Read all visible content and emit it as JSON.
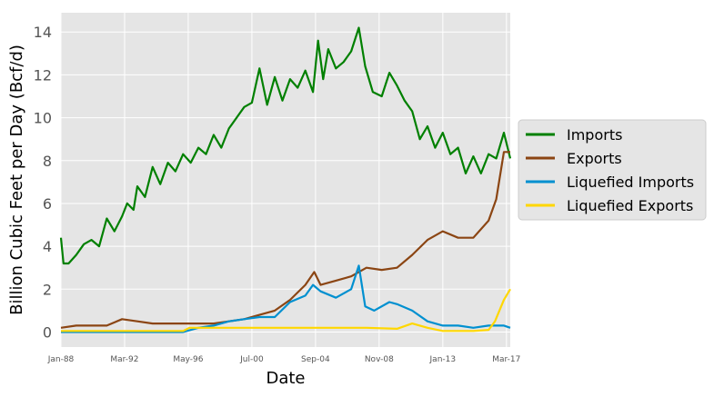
{
  "chart_data": {
    "type": "line",
    "xlabel": "Date",
    "ylabel": "Billion Cubic Feet per Day (Bcf/d)",
    "x_range": [
      "1988-01",
      "2017-06"
    ],
    "x_ticks": [
      "Jan-88",
      "Mar-92",
      "May-96",
      "Jul-00",
      "Sep-04",
      "Nov-08",
      "Jan-13",
      "Mar-17"
    ],
    "ylim": [
      -0.7,
      14.9
    ],
    "y_ticks": [
      0,
      2,
      4,
      6,
      8,
      10,
      12,
      14
    ],
    "grid": true,
    "legend_position": "right",
    "colors": {
      "Imports": "#008000",
      "Exports": "#8B4513",
      "Liquefied Imports": "#0090D0",
      "Liquefied Exports": "#FFD700"
    },
    "legend": [
      "Imports",
      "Exports",
      "Liquefied Imports",
      "Liquefied Exports"
    ],
    "series": [
      {
        "name": "Imports",
        "points": [
          [
            "1988-01",
            4.4
          ],
          [
            "1988-03",
            3.2
          ],
          [
            "1988-07",
            3.2
          ],
          [
            "1989-01",
            3.6
          ],
          [
            "1989-07",
            4.1
          ],
          [
            "1990-01",
            4.3
          ],
          [
            "1990-07",
            4.0
          ],
          [
            "1991-01",
            5.3
          ],
          [
            "1991-07",
            4.7
          ],
          [
            "1992-01",
            5.4
          ],
          [
            "1992-05",
            6.0
          ],
          [
            "1992-10",
            5.7
          ],
          [
            "1993-01",
            6.8
          ],
          [
            "1993-07",
            6.3
          ],
          [
            "1994-01",
            7.7
          ],
          [
            "1994-07",
            6.9
          ],
          [
            "1995-01",
            7.9
          ],
          [
            "1995-07",
            7.5
          ],
          [
            "1996-01",
            8.3
          ],
          [
            "1996-07",
            7.9
          ],
          [
            "1997-01",
            8.6
          ],
          [
            "1997-07",
            8.3
          ],
          [
            "1998-01",
            9.2
          ],
          [
            "1998-07",
            8.6
          ],
          [
            "1999-01",
            9.5
          ],
          [
            "1999-07",
            10.0
          ],
          [
            "2000-01",
            10.5
          ],
          [
            "2000-07",
            10.7
          ],
          [
            "2001-01",
            12.3
          ],
          [
            "2001-07",
            10.6
          ],
          [
            "2002-01",
            11.9
          ],
          [
            "2002-07",
            10.8
          ],
          [
            "2003-01",
            11.8
          ],
          [
            "2003-07",
            11.4
          ],
          [
            "2004-01",
            12.2
          ],
          [
            "2004-07",
            11.2
          ],
          [
            "2004-11",
            13.6
          ],
          [
            "2005-03",
            11.8
          ],
          [
            "2005-07",
            13.2
          ],
          [
            "2006-01",
            12.3
          ],
          [
            "2006-07",
            12.6
          ],
          [
            "2007-01",
            13.1
          ],
          [
            "2007-07",
            14.2
          ],
          [
            "2007-12",
            12.4
          ],
          [
            "2008-06",
            11.2
          ],
          [
            "2009-01",
            11.0
          ],
          [
            "2009-07",
            12.1
          ],
          [
            "2010-01",
            11.5
          ],
          [
            "2010-07",
            10.8
          ],
          [
            "2011-01",
            10.3
          ],
          [
            "2011-07",
            9.0
          ],
          [
            "2012-01",
            9.6
          ],
          [
            "2012-07",
            8.6
          ],
          [
            "2013-01",
            9.3
          ],
          [
            "2013-07",
            8.3
          ],
          [
            "2014-01",
            8.6
          ],
          [
            "2014-07",
            7.4
          ],
          [
            "2015-01",
            8.2
          ],
          [
            "2015-07",
            7.4
          ],
          [
            "2016-01",
            8.3
          ],
          [
            "2016-07",
            8.1
          ],
          [
            "2017-01",
            9.3
          ],
          [
            "2017-06",
            8.1
          ]
        ]
      },
      {
        "name": "Exports",
        "points": [
          [
            "1988-01",
            0.2
          ],
          [
            "1989-01",
            0.3
          ],
          [
            "1990-01",
            0.3
          ],
          [
            "1991-01",
            0.3
          ],
          [
            "1992-01",
            0.6
          ],
          [
            "1993-01",
            0.5
          ],
          [
            "1994-01",
            0.4
          ],
          [
            "1995-01",
            0.4
          ],
          [
            "1996-01",
            0.4
          ],
          [
            "1997-01",
            0.4
          ],
          [
            "1998-01",
            0.4
          ],
          [
            "1999-01",
            0.5
          ],
          [
            "2000-01",
            0.6
          ],
          [
            "2001-01",
            0.8
          ],
          [
            "2002-01",
            1.0
          ],
          [
            "2003-01",
            1.5
          ],
          [
            "2004-01",
            2.2
          ],
          [
            "2004-08",
            2.8
          ],
          [
            "2005-01",
            2.2
          ],
          [
            "2006-01",
            2.4
          ],
          [
            "2007-01",
            2.6
          ],
          [
            "2008-01",
            3.0
          ],
          [
            "2009-01",
            2.9
          ],
          [
            "2010-01",
            3.0
          ],
          [
            "2011-01",
            3.6
          ],
          [
            "2012-01",
            4.3
          ],
          [
            "2013-01",
            4.7
          ],
          [
            "2014-01",
            4.4
          ],
          [
            "2015-01",
            4.4
          ],
          [
            "2016-01",
            5.2
          ],
          [
            "2016-07",
            6.2
          ],
          [
            "2017-01",
            8.4
          ],
          [
            "2017-06",
            8.4
          ]
        ]
      },
      {
        "name": "Liquefied Imports",
        "points": [
          [
            "1988-01",
            0.0
          ],
          [
            "1996-01",
            0.0
          ],
          [
            "1997-01",
            0.2
          ],
          [
            "1998-01",
            0.3
          ],
          [
            "1999-01",
            0.5
          ],
          [
            "2000-01",
            0.6
          ],
          [
            "2001-01",
            0.7
          ],
          [
            "2002-01",
            0.7
          ],
          [
            "2003-01",
            1.4
          ],
          [
            "2004-01",
            1.7
          ],
          [
            "2004-07",
            2.2
          ],
          [
            "2005-01",
            1.9
          ],
          [
            "2006-01",
            1.6
          ],
          [
            "2007-01",
            2.0
          ],
          [
            "2007-07",
            3.1
          ],
          [
            "2007-12",
            1.2
          ],
          [
            "2008-07",
            1.0
          ],
          [
            "2009-07",
            1.4
          ],
          [
            "2010-01",
            1.3
          ],
          [
            "2011-01",
            1.0
          ],
          [
            "2012-01",
            0.5
          ],
          [
            "2013-01",
            0.3
          ],
          [
            "2014-01",
            0.3
          ],
          [
            "2015-01",
            0.2
          ],
          [
            "2016-01",
            0.3
          ],
          [
            "2017-01",
            0.3
          ],
          [
            "2017-06",
            0.2
          ]
        ]
      },
      {
        "name": "Liquefied Exports",
        "points": [
          [
            "1988-01",
            0.05
          ],
          [
            "1992-01",
            0.05
          ],
          [
            "1996-01",
            0.05
          ],
          [
            "1996-06",
            0.2
          ],
          [
            "2000-01",
            0.2
          ],
          [
            "2004-01",
            0.2
          ],
          [
            "2008-01",
            0.2
          ],
          [
            "2010-01",
            0.15
          ],
          [
            "2011-01",
            0.4
          ],
          [
            "2012-01",
            0.2
          ],
          [
            "2013-01",
            0.05
          ],
          [
            "2014-01",
            0.05
          ],
          [
            "2015-01",
            0.05
          ],
          [
            "2016-01",
            0.1
          ],
          [
            "2016-06",
            0.5
          ],
          [
            "2017-01",
            1.5
          ],
          [
            "2017-06",
            2.0
          ]
        ]
      }
    ]
  }
}
